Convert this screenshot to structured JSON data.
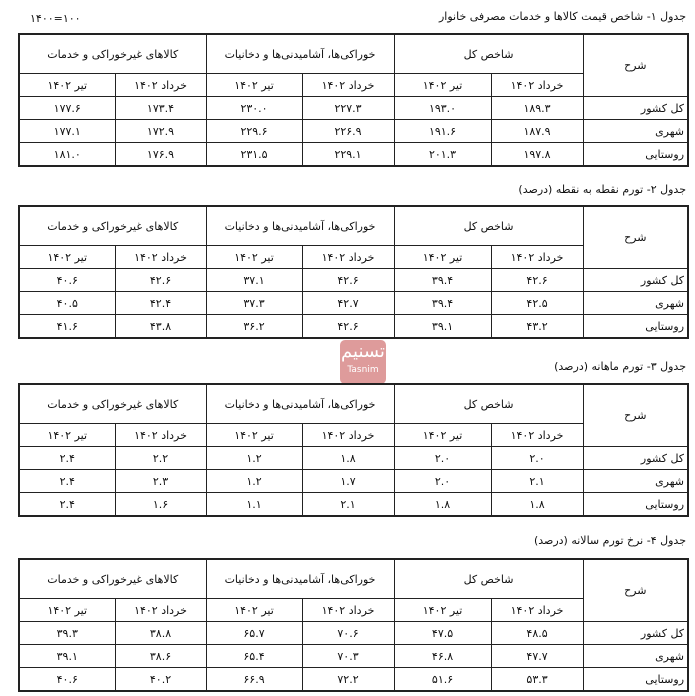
{
  "base_note": "۱۴۰۰=۱۰۰",
  "watermark": {
    "logo_text": "تسنیم",
    "sub": "Tasnim",
    "color": "#d98a8a"
  },
  "headers": {
    "desc": "شرح",
    "groups": [
      "شاخص کل",
      "خوراکی‌ها، آشامیدنی‌ها و دخانیات",
      "کالاهای غیرخوراکی و خدمات"
    ],
    "months": [
      "خرداد ۱۴۰۲",
      "تیر ۱۴۰۲"
    ]
  },
  "row_labels": [
    "کل کشور",
    "شهری",
    "روستایی"
  ],
  "tables": [
    {
      "title": "جدول ۱-  شاخص قیمت کالاها و خدمات مصرفی خانوار",
      "rows": [
        [
          "۱۸۹.۳",
          "۱۹۳.۰",
          "۲۲۷.۳",
          "۲۳۰.۰",
          "۱۷۳.۴",
          "۱۷۷.۶"
        ],
        [
          "۱۸۷.۹",
          "۱۹۱.۶",
          "۲۲۶.۹",
          "۲۲۹.۶",
          "۱۷۲.۹",
          "۱۷۷.۱"
        ],
        [
          "۱۹۷.۸",
          "۲۰۱.۳",
          "۲۲۹.۱",
          "۲۳۱.۵",
          "۱۷۶.۹",
          "۱۸۱.۰"
        ]
      ]
    },
    {
      "title": "جدول ۲-  تورم نقطه به نقطه (درصد)",
      "rows": [
        [
          "۴۲.۶",
          "۳۹.۴",
          "۴۲.۶",
          "۳۷.۱",
          "۴۲.۶",
          "۴۰.۶"
        ],
        [
          "۴۲.۵",
          "۳۹.۴",
          "۴۲.۷",
          "۳۷.۳",
          "۴۲.۴",
          "۴۰.۵"
        ],
        [
          "۴۳.۲",
          "۳۹.۱",
          "۴۲.۶",
          "۳۶.۲",
          "۴۳.۸",
          "۴۱.۶"
        ]
      ]
    },
    {
      "title": "جدول ۳-  تورم ماهانه (درصد)",
      "rows": [
        [
          "۲.۰",
          "۲.۰",
          "۱.۸",
          "۱.۲",
          "۲.۲",
          "۲.۴"
        ],
        [
          "۲.۱",
          "۲.۰",
          "۱.۷",
          "۱.۲",
          "۲.۳",
          "۲.۴"
        ],
        [
          "۱.۸",
          "۱.۸",
          "۲.۱",
          "۱.۱",
          "۱.۶",
          "۲.۴"
        ]
      ]
    },
    {
      "title": "جدول ۴-  نرخ تورم سالانه (درصد)",
      "rows": [
        [
          "۴۸.۵",
          "۴۷.۵",
          "۷۰.۶",
          "۶۵.۷",
          "۳۸.۸",
          "۳۹.۳"
        ],
        [
          "۴۷.۷",
          "۴۶.۸",
          "۷۰.۳",
          "۶۵.۴",
          "۳۸.۶",
          "۳۹.۱"
        ],
        [
          "۵۳.۳",
          "۵۱.۶",
          "۷۲.۲",
          "۶۶.۹",
          "۴۰.۲",
          "۴۰.۶"
        ]
      ]
    }
  ]
}
